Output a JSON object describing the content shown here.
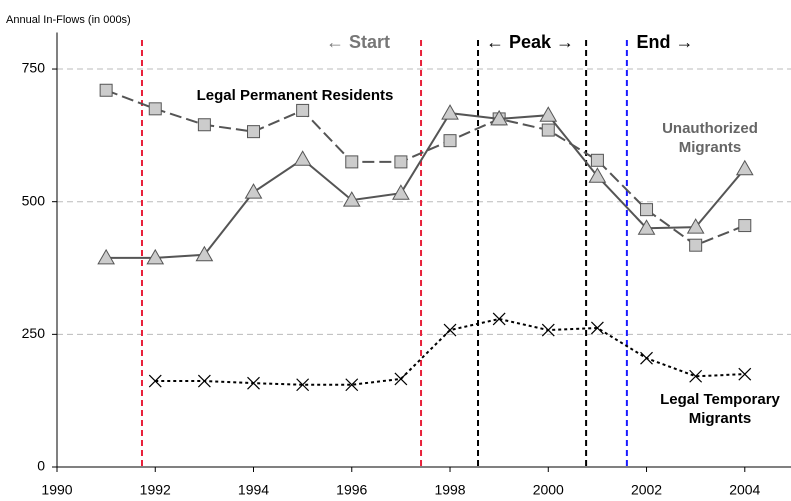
{
  "chart_data": {
    "type": "line",
    "y_axis_label": "Annual In-Flows (in 000s)",
    "x": [
      1991,
      1992,
      1993,
      1994,
      1995,
      1996,
      1997,
      1998,
      1999,
      2000,
      2001,
      2002,
      2003,
      2004
    ],
    "series": [
      {
        "name": "Legal Permanent Residents",
        "color": "#555555",
        "marker": "square",
        "dash": "dashed",
        "values": [
          710,
          675,
          645,
          632,
          672,
          575,
          575,
          615,
          656,
          635,
          578,
          485,
          418,
          455
        ]
      },
      {
        "name": "Unauthorized Migrants",
        "color": "#555555",
        "marker": "triangle",
        "dash": "solid",
        "values": [
          394,
          394,
          400,
          518,
          580,
          503,
          516,
          667,
          656,
          663,
          548,
          450,
          452,
          562
        ]
      },
      {
        "name": "Legal Temporary Migrants",
        "color": "#000000",
        "marker": "x",
        "dash": "dotted",
        "values": [
          null,
          162,
          162,
          158,
          155,
          155,
          166,
          258,
          279,
          258,
          262,
          205,
          171,
          175
        ]
      }
    ],
    "phase_lines": [
      {
        "value": 1991.73,
        "color": "#e8203a"
      },
      {
        "value": 1997.41,
        "color": "#e8203a"
      },
      {
        "value": 1998.57,
        "color": "#000000"
      },
      {
        "value": 2000.77,
        "color": "#000000"
      },
      {
        "value": 2001.6,
        "color": "#1a1aff"
      }
    ],
    "annotations": [
      "← Start",
      "← Peak →",
      "End →"
    ],
    "xlim": [
      1990,
      2004.9
    ],
    "xticks": [
      1990,
      1992,
      1994,
      1996,
      1998,
      2000,
      2002,
      2004
    ],
    "ylim": [
      0,
      800
    ],
    "yticks": [
      0,
      250,
      500,
      750
    ],
    "grid": true
  }
}
